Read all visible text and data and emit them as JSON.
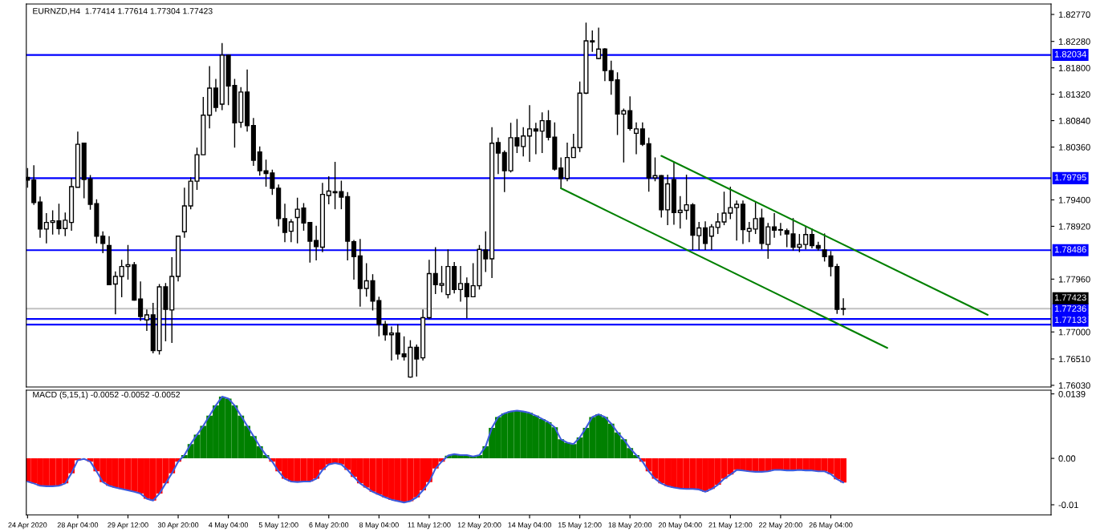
{
  "chart_data": [
    {
      "type": "candlestick",
      "title": "EURNZD,H4  1.77414 1.77614 1.77304 1.77423",
      "categories": [
        null,
        null,
        null,
        null,
        null,
        null,
        null,
        null,
        null,
        null,
        null,
        null,
        null,
        null,
        null,
        null,
        null,
        null,
        null,
        null,
        null,
        null,
        null,
        null,
        null,
        null,
        null,
        null,
        null,
        null,
        null,
        null,
        null,
        null,
        null,
        null,
        null,
        null,
        null,
        null,
        null,
        null,
        null,
        null,
        null,
        null,
        null,
        null,
        null,
        null,
        null,
        null,
        null,
        null,
        null,
        null,
        null,
        null,
        null,
        null,
        null,
        null,
        null,
        null,
        null,
        null,
        null,
        null,
        null,
        null,
        null,
        null,
        null,
        null,
        null,
        null,
        null,
        null,
        null,
        null,
        null,
        null,
        null,
        null,
        null,
        null,
        null,
        null,
        null,
        null,
        null,
        null,
        null,
        null,
        null,
        null,
        null,
        null,
        null,
        null,
        null,
        null,
        null,
        null,
        null,
        null,
        null,
        null,
        null,
        null,
        null,
        null,
        null,
        null,
        null,
        null,
        null,
        null,
        null,
        null,
        null,
        null,
        null,
        null,
        null,
        null,
        null,
        null,
        null,
        null,
        null,
        null,
        null,
        null,
        null,
        null,
        null,
        null,
        null,
        null,
        null,
        null,
        null,
        null,
        null,
        null,
        null,
        null,
        null,
        null,
        null,
        null,
        null,
        null,
        null,
        null,
        null,
        null,
        null,
        null,
        null,
        null,
        null,
        null
      ],
      "ohlc": [
        [
          1.7981,
          1.7998,
          1.7962,
          1.7976
        ],
        [
          1.7976,
          1.8003,
          1.7931,
          1.7935
        ],
        [
          1.7936,
          1.7946,
          1.7871,
          1.7887
        ],
        [
          1.7887,
          1.7916,
          1.7861,
          1.7899
        ],
        [
          1.7899,
          1.7921,
          1.7877,
          1.7902
        ],
        [
          1.7902,
          1.7933,
          1.7877,
          1.7888
        ],
        [
          1.7888,
          1.7917,
          1.7874,
          1.7903
        ],
        [
          1.7899,
          1.798,
          1.7884,
          1.7964
        ],
        [
          1.7963,
          1.8064,
          1.7963,
          1.8041
        ],
        [
          1.8043,
          1.8044,
          1.7943,
          1.7977
        ],
        [
          1.7978,
          1.7985,
          1.7922,
          1.7932
        ],
        [
          1.7933,
          1.7941,
          1.7861,
          1.7874
        ],
        [
          1.7874,
          1.7883,
          1.7843,
          1.7861
        ],
        [
          1.7857,
          1.7874,
          1.7785,
          1.7786
        ],
        [
          1.7787,
          1.781,
          1.7732,
          1.7801
        ],
        [
          1.7801,
          1.7831,
          1.7763,
          1.7819
        ],
        [
          1.7819,
          1.7858,
          1.7795,
          1.7822
        ],
        [
          1.7822,
          1.7827,
          1.7757,
          1.7758
        ],
        [
          1.776,
          1.7792,
          1.772,
          1.7728
        ],
        [
          1.7722,
          1.7741,
          1.7702,
          1.7731
        ],
        [
          1.7731,
          1.7753,
          1.7661,
          1.7666
        ],
        [
          1.7666,
          1.7787,
          1.7659,
          1.7782
        ],
        [
          1.7782,
          1.7789,
          1.7683,
          1.7741
        ],
        [
          1.774,
          1.7836,
          1.768,
          1.7801
        ],
        [
          1.7801,
          1.7875,
          1.7792,
          1.7874
        ],
        [
          1.7882,
          1.7962,
          1.7871,
          1.7929
        ],
        [
          1.7929,
          1.7981,
          1.7923,
          1.7974
        ],
        [
          1.7974,
          1.8035,
          1.7958,
          1.8022
        ],
        [
          1.8022,
          1.8127,
          1.8022,
          1.8094
        ],
        [
          1.8094,
          1.8183,
          1.807,
          1.8143
        ],
        [
          1.8143,
          1.816,
          1.81,
          1.8108
        ],
        [
          1.8114,
          1.8225,
          1.8103,
          1.8203
        ],
        [
          1.8203,
          1.8204,
          1.8112,
          1.8147
        ],
        [
          1.8148,
          1.816,
          1.8035,
          1.808
        ],
        [
          1.8081,
          1.8145,
          1.8071,
          1.8136
        ],
        [
          1.8136,
          1.8177,
          1.8064,
          1.8075
        ],
        [
          1.8075,
          1.8089,
          1.8002,
          1.8012
        ],
        [
          1.8027,
          1.8037,
          1.7984,
          1.7993
        ],
        [
          1.7993,
          1.8013,
          1.7964,
          1.7988
        ],
        [
          1.7989,
          1.7995,
          1.7949,
          1.7961
        ],
        [
          1.7961,
          1.7968,
          1.7892,
          1.7906
        ],
        [
          1.7906,
          1.7933,
          1.7863,
          1.7881
        ],
        [
          1.7883,
          1.7905,
          1.7863,
          1.79
        ],
        [
          1.7908,
          1.7944,
          1.7861,
          1.7923
        ],
        [
          1.7925,
          1.7934,
          1.7884,
          1.7898
        ],
        [
          1.7899,
          1.79,
          1.7826,
          1.7865
        ],
        [
          1.7866,
          1.7893,
          1.783,
          1.7855
        ],
        [
          1.7854,
          1.7971,
          1.7845,
          1.795
        ],
        [
          1.7948,
          1.7983,
          1.7932,
          1.7956
        ],
        [
          1.7955,
          1.8009,
          1.7923,
          1.7953
        ],
        [
          1.7955,
          1.7975,
          1.7923,
          1.7945
        ],
        [
          1.7946,
          1.7954,
          1.783,
          1.7865
        ],
        [
          1.7864,
          1.7867,
          1.7795,
          1.7837
        ],
        [
          1.7838,
          1.7869,
          1.7746,
          1.7779
        ],
        [
          1.7779,
          1.7825,
          1.7764,
          1.7793
        ],
        [
          1.7793,
          1.7805,
          1.7739,
          1.7756
        ],
        [
          1.7757,
          1.7764,
          1.7692,
          1.7714
        ],
        [
          1.7714,
          1.772,
          1.7684,
          1.7695
        ],
        [
          1.7695,
          1.771,
          1.7648,
          1.7698
        ],
        [
          1.7698,
          1.7714,
          1.765,
          1.766
        ],
        [
          1.766,
          1.7692,
          1.7648,
          1.7655
        ],
        [
          1.7618,
          1.7685,
          1.7617,
          1.7672
        ],
        [
          1.7672,
          1.7677,
          1.7619,
          1.7651
        ],
        [
          1.7653,
          1.7741,
          1.7648,
          1.7726
        ],
        [
          1.7726,
          1.7831,
          1.7723,
          1.7806
        ],
        [
          1.7806,
          1.7854,
          1.7769,
          1.7786
        ],
        [
          1.7785,
          1.782,
          1.7772,
          1.7788
        ],
        [
          1.7768,
          1.785,
          1.7761,
          1.7819
        ],
        [
          1.7819,
          1.7827,
          1.777,
          1.7777
        ],
        [
          1.7777,
          1.782,
          1.7755,
          1.7788
        ],
        [
          1.7788,
          1.7799,
          1.7725,
          1.7764
        ],
        [
          1.7764,
          1.7825,
          1.7764,
          1.7784
        ],
        [
          1.7784,
          1.7858,
          1.7777,
          1.785
        ],
        [
          1.7849,
          1.7883,
          1.7809,
          1.7833
        ],
        [
          1.7833,
          1.8072,
          1.7798,
          1.8043
        ],
        [
          1.8044,
          1.8053,
          1.7987,
          1.8025
        ],
        [
          1.8026,
          1.803,
          1.7954,
          1.7993
        ],
        [
          1.7993,
          1.808,
          1.799,
          1.8053
        ],
        [
          1.8053,
          1.8087,
          1.8025,
          1.8038
        ],
        [
          1.8037,
          1.8072,
          1.8019,
          1.8056
        ],
        [
          1.8056,
          1.8112,
          1.8009,
          1.8069
        ],
        [
          1.8069,
          1.808,
          1.8023,
          1.8065
        ],
        [
          1.8065,
          1.8099,
          1.8025,
          1.8084
        ],
        [
          1.8084,
          1.8103,
          1.8048,
          1.8054
        ],
        [
          1.8054,
          1.8081,
          1.7993,
          1.7996
        ],
        [
          1.7998,
          1.8017,
          1.7961,
          1.7979
        ],
        [
          1.7979,
          1.8044,
          1.7974,
          1.8017
        ],
        [
          1.8017,
          1.806,
          1.8017,
          1.8035
        ],
        [
          1.8035,
          1.8155,
          1.8027,
          1.8134
        ],
        [
          1.8134,
          1.8262,
          1.8132,
          1.8229
        ],
        [
          1.8229,
          1.8248,
          1.8209,
          1.8227
        ],
        [
          1.8197,
          1.8253,
          1.8196,
          1.8214
        ],
        [
          1.8214,
          1.8216,
          1.8156,
          1.8175
        ],
        [
          1.8175,
          1.8193,
          1.8131,
          1.8157
        ],
        [
          1.8158,
          1.8172,
          1.8058,
          1.8096
        ],
        [
          1.8096,
          1.8106,
          1.8008,
          1.8102
        ],
        [
          1.8102,
          1.8128,
          1.8066,
          1.807
        ],
        [
          1.8061,
          1.8081,
          1.8023,
          1.8069
        ],
        [
          1.8069,
          1.8081,
          1.8038,
          1.8041
        ],
        [
          1.8042,
          1.8053,
          1.7955,
          1.798
        ],
        [
          1.798,
          1.8017,
          1.7974,
          1.7984
        ],
        [
          1.7984,
          1.7985,
          1.7908,
          1.7922
        ],
        [
          1.7922,
          1.7986,
          1.7894,
          1.7969
        ],
        [
          1.7977,
          1.8009,
          1.7895,
          1.7917
        ],
        [
          1.7917,
          1.7947,
          1.7888,
          1.7921
        ],
        [
          1.7921,
          1.7986,
          1.7904,
          1.7931
        ],
        [
          1.7931,
          1.7934,
          1.7849,
          1.7876
        ],
        [
          1.7875,
          1.79,
          1.7849,
          1.7889
        ],
        [
          1.7889,
          1.7901,
          1.7849,
          1.7861
        ],
        [
          1.7874,
          1.7896,
          1.7849,
          1.7891
        ],
        [
          1.789,
          1.7916,
          1.7878,
          1.79
        ],
        [
          1.79,
          1.7955,
          1.7894,
          1.7916
        ],
        [
          1.7916,
          1.7964,
          1.7905,
          1.7926
        ],
        [
          1.7926,
          1.7939,
          1.7866,
          1.7932
        ],
        [
          1.7932,
          1.7939,
          1.786,
          1.7886
        ],
        [
          1.7883,
          1.79,
          1.7863,
          1.7888
        ],
        [
          1.7887,
          1.7936,
          1.7878,
          1.7906
        ],
        [
          1.7907,
          1.7924,
          1.785,
          1.7861
        ],
        [
          1.7859,
          1.7898,
          1.7833,
          1.7891
        ],
        [
          1.7891,
          1.7916,
          1.7871,
          1.7885
        ],
        [
          1.7886,
          1.7898,
          1.7875,
          1.7885
        ],
        [
          1.7884,
          1.7888,
          1.7854,
          1.7878
        ],
        [
          1.7878,
          1.7907,
          1.7848,
          1.7854
        ],
        [
          1.7854,
          1.7878,
          1.7845,
          1.7859
        ],
        [
          1.7859,
          1.7892,
          1.785,
          1.7877
        ],
        [
          1.7877,
          1.7888,
          1.7852,
          1.7857
        ],
        [
          1.7857,
          1.7864,
          1.7848,
          1.7852
        ],
        [
          1.7849,
          1.7879,
          1.7828,
          1.7837
        ],
        [
          1.7838,
          1.7847,
          1.7801,
          1.7819
        ],
        [
          1.7819,
          1.7824,
          1.7733,
          1.7741
        ],
        [
          1.77414,
          1.77614,
          1.77304,
          1.77423
        ],
        null,
        null,
        null,
        null,
        null,
        null,
        null,
        null,
        null,
        null,
        null,
        null,
        null,
        null,
        null,
        null,
        null,
        null,
        null,
        null,
        null,
        null,
        null,
        null,
        null,
        null,
        null,
        null,
        null,
        null,
        null,
        null,
        null
      ],
      "series": [
        {
          "type": "line",
          "color": "#008000",
          "values": [
            null,
            null,
            null,
            null,
            null,
            null,
            null,
            null,
            null,
            null,
            null,
            null,
            null,
            null,
            null,
            null,
            null,
            null,
            null,
            null,
            null,
            null,
            null,
            null,
            null,
            null,
            null,
            null,
            null,
            null,
            null,
            null,
            null,
            null,
            null,
            null,
            null,
            null,
            null,
            null,
            null,
            null,
            null,
            null,
            null,
            null,
            null,
            null,
            null,
            null,
            null,
            null,
            null,
            null,
            null,
            null,
            null,
            null,
            null,
            null,
            null,
            null,
            null,
            null,
            null,
            null,
            null,
            null,
            null,
            null,
            null,
            null,
            null,
            null,
            null,
            null,
            null,
            null,
            null,
            null,
            null,
            null,
            null,
            null,
            null,
            null,
            null,
            null,
            null,
            null,
            null,
            null,
            null,
            null,
            null,
            null,
            null,
            null,
            null,
            null,
            null,
            1.802,
            null,
            null,
            null,
            null,
            null,
            null,
            null,
            null,
            null,
            null,
            null,
            null,
            null,
            null,
            null,
            null,
            null,
            null,
            null,
            null,
            null,
            null,
            null,
            null,
            null,
            null,
            null,
            null,
            null,
            null,
            null,
            null,
            null,
            null,
            null,
            null,
            null,
            null,
            null,
            null,
            null,
            null,
            null,
            null,
            null,
            null,
            null,
            null,
            null,
            null,
            null,
            1.7731,
            null,
            null,
            null,
            null,
            null,
            null,
            null,
            null,
            null,
            null
          ]
        },
        {
          "type": "line",
          "color": "#008000",
          "values": [
            null,
            null,
            null,
            null,
            null,
            null,
            null,
            null,
            null,
            null,
            null,
            null,
            null,
            null,
            null,
            null,
            null,
            null,
            null,
            null,
            null,
            null,
            null,
            null,
            null,
            null,
            null,
            null,
            null,
            null,
            null,
            null,
            null,
            null,
            null,
            null,
            null,
            null,
            null,
            null,
            null,
            null,
            null,
            null,
            null,
            null,
            null,
            null,
            null,
            null,
            null,
            null,
            null,
            null,
            null,
            null,
            null,
            null,
            null,
            null,
            null,
            null,
            null,
            null,
            null,
            null,
            null,
            null,
            null,
            null,
            null,
            null,
            null,
            null,
            null,
            null,
            null,
            null,
            null,
            null,
            null,
            null,
            null,
            null,
            null,
            1.7961,
            null,
            null,
            null,
            null,
            null,
            null,
            null,
            null,
            null,
            null,
            null,
            null,
            null,
            null,
            null,
            null,
            null,
            null,
            null,
            null,
            null,
            null,
            null,
            null,
            null,
            null,
            null,
            null,
            null,
            null,
            null,
            null,
            null,
            null,
            null,
            null,
            null,
            null,
            null,
            null,
            null,
            null,
            null,
            null,
            null,
            null,
            null,
            null,
            null,
            null,
            null,
            1.7671,
            null,
            null,
            null,
            null,
            null,
            null,
            null,
            null,
            null,
            null,
            null,
            null,
            null,
            null,
            null,
            null,
            null,
            null,
            null,
            null,
            null,
            null,
            null,
            null,
            null,
            null
          ]
        }
      ],
      "ylim": [
        1.76,
        1.8296
      ],
      "yticks": [
        {
          "value": 1.8277,
          "label": "1.82770"
        },
        {
          "value": 1.8228,
          "label": "1.82280"
        },
        {
          "value": 1.818,
          "label": "1.81800"
        },
        {
          "value": 1.8132,
          "label": "1.81320"
        },
        {
          "value": 1.8084,
          "label": "1.80840"
        },
        {
          "value": 1.8036,
          "label": "1.80360"
        },
        {
          "value": 1.794,
          "label": "1.79400"
        },
        {
          "value": 1.7892,
          "label": "1.78920"
        },
        {
          "value": 1.7796,
          "label": "1.77960"
        },
        {
          "value": 1.77,
          "label": "1.77000"
        },
        {
          "value": 1.7651,
          "label": "1.76510"
        },
        {
          "value": 1.7603,
          "label": "1.76030"
        }
      ],
      "ref_lines": [
        {
          "axis": "y",
          "value": 1.82034,
          "label": "1.82034",
          "color": "#0000ff"
        },
        {
          "axis": "y",
          "value": 1.79795,
          "label": "1.79795",
          "color": "#0000ff"
        },
        {
          "axis": "y",
          "value": 1.78486,
          "label": "1.78486",
          "color": "#0000ff"
        },
        {
          "axis": "y",
          "value": 1.77423,
          "label": "1.77423",
          "color": "#c0c0c0"
        },
        {
          "axis": "y",
          "value": 1.77236,
          "label": "1.77236",
          "color": "#0000ff"
        },
        {
          "axis": "y",
          "value": 1.77133,
          "label": "1.77133",
          "color": "#0000ff"
        }
      ],
      "tick_labels": "y"
    },
    {
      "type": "bar",
      "title": "MACD (5,15,1) -0.0052 -0.0052 -0.0052",
      "categories": [
        "24 Apr 2020",
        null,
        null,
        null,
        null,
        null,
        null,
        null,
        "28 Apr 04:00",
        null,
        null,
        null,
        null,
        null,
        null,
        null,
        "29 Apr 12:00",
        null,
        null,
        null,
        null,
        null,
        null,
        null,
        "30 Apr 20:00",
        null,
        null,
        null,
        null,
        null,
        null,
        null,
        "4 May 04:00",
        null,
        null,
        null,
        null,
        null,
        null,
        null,
        "5 May 12:00",
        null,
        null,
        null,
        null,
        null,
        null,
        null,
        "6 May 20:00",
        null,
        null,
        null,
        null,
        null,
        null,
        null,
        "8 May 04:00",
        null,
        null,
        null,
        null,
        null,
        null,
        null,
        "11 May 12:00",
        null,
        null,
        null,
        null,
        null,
        null,
        null,
        "12 May 20:00",
        null,
        null,
        null,
        null,
        null,
        null,
        null,
        "14 May 04:00",
        null,
        null,
        null,
        null,
        null,
        null,
        null,
        "15 May 12:00",
        null,
        null,
        null,
        null,
        null,
        null,
        null,
        "18 May 20:00",
        null,
        null,
        null,
        null,
        null,
        null,
        null,
        "20 May 04:00",
        null,
        null,
        null,
        null,
        null,
        null,
        null,
        "21 May 12:00",
        null,
        null,
        null,
        null,
        null,
        null,
        null,
        "22 May 20:00",
        null,
        null,
        null,
        null,
        null,
        null,
        null,
        "26 May 04:00",
        null,
        null,
        null,
        null,
        null,
        null,
        null,
        null,
        null,
        null,
        null,
        null,
        null,
        null,
        null,
        null,
        null,
        null,
        null,
        null,
        null,
        null,
        null,
        null,
        null,
        null,
        null,
        null,
        null,
        null,
        null,
        null,
        null,
        null,
        null
      ],
      "series": [
        {
          "type": "bar",
          "color": "#008000",
          "values": [
            null,
            null,
            null,
            null,
            null,
            null,
            null,
            null,
            null,
            null,
            null,
            null,
            null,
            null,
            null,
            null,
            null,
            null,
            null,
            null,
            null,
            null,
            null,
            null,
            null,
            0.0007,
            0.0031,
            0.0051,
            0.007,
            0.0092,
            0.0114,
            0.0133,
            0.0129,
            0.0114,
            0.0092,
            0.007,
            0.0048,
            0.0026,
            0.0007,
            null,
            null,
            null,
            null,
            null,
            null,
            null,
            null,
            null,
            null,
            null,
            null,
            null,
            null,
            null,
            null,
            null,
            null,
            null,
            null,
            null,
            null,
            null,
            null,
            null,
            null,
            null,
            null,
            0.0006,
            0.0009,
            0.0007,
            0.0007,
            0.0004,
            0.0007,
            0.0026,
            0.0066,
            0.0089,
            0.0097,
            0.0101,
            0.0103,
            0.0101,
            0.0098,
            0.0092,
            0.0085,
            0.0078,
            0.0067,
            0.0041,
            0.0034,
            0.0031,
            0.0045,
            0.0066,
            0.0089,
            0.0095,
            0.0089,
            0.0075,
            0.0056,
            0.0041,
            0.0022,
            0.0007,
            null,
            null,
            null,
            null,
            null,
            null,
            null,
            null,
            null,
            null,
            null,
            null,
            null,
            null,
            null,
            null,
            null,
            null,
            null,
            null,
            null,
            null,
            null,
            null,
            null,
            null,
            null,
            null,
            null,
            null,
            null,
            null,
            null,
            null,
            null,
            null,
            null,
            null,
            null,
            null,
            null,
            null,
            null,
            null,
            null,
            null,
            null,
            null,
            null,
            null,
            null,
            null,
            null,
            null,
            null,
            null,
            null,
            null,
            null,
            null,
            null,
            null,
            null,
            null,
            null,
            null
          ]
        },
        {
          "type": "bar",
          "color": "#ff0000",
          "values": [
            -0.005,
            -0.0054,
            -0.0059,
            -0.006,
            -0.006,
            -0.0059,
            -0.0054,
            -0.0032,
            -0.0004,
            null,
            -0.0007,
            -0.0028,
            -0.0051,
            -0.0059,
            -0.0063,
            -0.0066,
            -0.0069,
            -0.0072,
            -0.0076,
            -0.0087,
            -0.0091,
            -0.0076,
            -0.0054,
            -0.0032,
            -0.0007,
            null,
            null,
            null,
            null,
            null,
            null,
            null,
            null,
            null,
            null,
            null,
            null,
            null,
            null,
            -0.0007,
            -0.0028,
            -0.0044,
            -0.005,
            -0.0051,
            -0.005,
            -0.005,
            -0.0044,
            -0.0025,
            -0.0013,
            -0.001,
            -0.0013,
            -0.0025,
            -0.004,
            -0.0054,
            -0.0063,
            -0.0072,
            -0.0078,
            -0.0084,
            -0.0089,
            -0.0092,
            -0.0095,
            -0.0092,
            -0.0084,
            -0.0069,
            -0.0051,
            -0.0022,
            -0.0007,
            null,
            null,
            null,
            null,
            null,
            null,
            null,
            null,
            null,
            null,
            null,
            null,
            null,
            null,
            null,
            null,
            null,
            null,
            null,
            null,
            null,
            null,
            null,
            null,
            null,
            null,
            null,
            null,
            null,
            null,
            null,
            -0.0007,
            -0.0028,
            -0.0044,
            -0.0054,
            -0.006,
            -0.0063,
            -0.0065,
            -0.0066,
            -0.0066,
            -0.0067,
            -0.0072,
            -0.0066,
            -0.0057,
            -0.0044,
            -0.0035,
            -0.0025,
            -0.0026,
            -0.0028,
            -0.0029,
            -0.0029,
            -0.0028,
            -0.0025,
            -0.0025,
            -0.0026,
            -0.0026,
            -0.0025,
            -0.0026,
            -0.0026,
            -0.0028,
            -0.0028,
            -0.0034,
            -0.0045,
            -0.0052,
            null,
            null,
            null,
            null,
            null,
            null,
            null,
            null,
            null,
            null,
            null,
            null,
            null,
            null,
            null,
            null,
            null,
            null,
            null,
            null,
            null,
            null,
            null,
            null,
            null,
            null,
            null,
            null,
            null,
            null,
            null,
            null,
            null
          ]
        },
        {
          "type": "line",
          "color": "#3c5adc",
          "values": [
            -0.005,
            -0.0054,
            -0.0059,
            -0.006,
            -0.006,
            -0.0059,
            -0.0054,
            -0.0032,
            -0.0004,
            -0.0001,
            -0.0007,
            -0.0028,
            -0.0051,
            -0.0059,
            -0.0063,
            -0.0066,
            -0.0069,
            -0.0072,
            -0.0076,
            -0.0087,
            -0.0091,
            -0.0076,
            -0.0054,
            -0.0032,
            -0.0007,
            0.0007,
            0.0031,
            0.0051,
            0.007,
            0.0092,
            0.0114,
            0.0133,
            0.0129,
            0.0114,
            0.0092,
            0.007,
            0.0048,
            0.0026,
            0.0007,
            -0.0007,
            -0.0028,
            -0.0044,
            -0.005,
            -0.0051,
            -0.005,
            -0.005,
            -0.0044,
            -0.0025,
            -0.0013,
            -0.001,
            -0.0013,
            -0.0025,
            -0.004,
            -0.0054,
            -0.0063,
            -0.0072,
            -0.0078,
            -0.0084,
            -0.0089,
            -0.0092,
            -0.0095,
            -0.0092,
            -0.0084,
            -0.0069,
            -0.0051,
            -0.0022,
            -0.0007,
            0.0006,
            0.0009,
            0.0007,
            0.0007,
            0.0004,
            0.0007,
            0.0026,
            0.0066,
            0.0089,
            0.0097,
            0.0101,
            0.0103,
            0.0101,
            0.0098,
            0.0092,
            0.0085,
            0.0078,
            0.0067,
            0.0041,
            0.0034,
            0.0031,
            0.0045,
            0.0066,
            0.0089,
            0.0095,
            0.0089,
            0.0075,
            0.0056,
            0.0041,
            0.0022,
            0.0007,
            -0.0007,
            -0.0028,
            -0.0044,
            -0.0054,
            -0.006,
            -0.0063,
            -0.0065,
            -0.0066,
            -0.0066,
            -0.0067,
            -0.0072,
            -0.0066,
            -0.0057,
            -0.0044,
            -0.0035,
            -0.0025,
            -0.0026,
            -0.0028,
            -0.0029,
            -0.0029,
            -0.0028,
            -0.0025,
            -0.0025,
            -0.0026,
            -0.0026,
            -0.0025,
            -0.0026,
            -0.0026,
            -0.0028,
            -0.0028,
            -0.0034,
            -0.0045,
            -0.0052,
            null,
            null,
            null,
            null,
            null,
            null,
            null,
            null,
            null,
            null,
            null,
            null,
            null,
            null,
            null,
            null,
            null,
            null,
            null,
            null,
            null,
            null,
            null,
            null,
            null,
            null,
            null,
            null,
            null,
            null,
            null,
            null,
            null
          ]
        }
      ],
      "ylim": [
        -0.0122,
        0.0147
      ],
      "yticks": [
        0.0139,
        {
          "value": 0,
          "label": "0.00"
        },
        {
          "value": -0.01,
          "label": "-0.01"
        }
      ]
    }
  ]
}
